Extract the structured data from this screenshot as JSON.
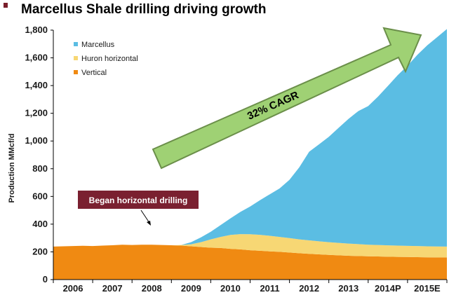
{
  "title": "Marcellus Shale drilling driving growth",
  "colors": {
    "bullet": "#7a1f2b",
    "marcellus": "#5bbde3",
    "huron": "#f7d774",
    "vertical": "#f08a12",
    "annotation_bg": "#7a2030",
    "arrow_fill": "#9fd174",
    "arrow_stroke": "#6b8f4a"
  },
  "annotations": {
    "began_horizontal": "Began horizontal drilling",
    "cagr": "32% CAGR"
  },
  "chart_data": {
    "type": "area",
    "title": "",
    "ylabel": "Production MMcf/d",
    "xlabel": "",
    "ylim": [
      0,
      1800
    ],
    "yticks": [
      "0",
      "200",
      "400",
      "600",
      "800",
      "1,000",
      "1,200",
      "1,400",
      "1,600",
      "1,800"
    ],
    "ytick_values": [
      0,
      200,
      400,
      600,
      800,
      1000,
      1200,
      1400,
      1600,
      1800
    ],
    "categories": [
      "2006",
      "2007",
      "2008",
      "2009",
      "2010",
      "2011",
      "2012",
      "2013",
      "2014P",
      "2015E"
    ],
    "x": [
      0,
      0.25,
      0.5,
      0.75,
      1,
      1.25,
      1.5,
      1.75,
      2,
      2.25,
      2.5,
      2.75,
      3,
      3.25,
      3.5,
      3.75,
      4,
      4.25,
      4.5,
      4.75,
      5,
      5.25,
      5.5,
      5.75,
      6,
      6.25,
      6.5,
      6.75,
      7,
      7.25,
      7.5,
      7.75,
      8,
      8.25,
      8.5,
      8.75,
      9,
      9.25,
      9.5,
      9.75,
      10
    ],
    "stacking": "stacked",
    "legend_position": "top-left",
    "series": [
      {
        "name": "Marcellus",
        "values": [
          0,
          0,
          0,
          0,
          0,
          0,
          0,
          0,
          0,
          0,
          0,
          0,
          0,
          0,
          15,
          35,
          55,
          85,
          120,
          160,
          200,
          250,
          300,
          350,
          420,
          520,
          640,
          700,
          760,
          830,
          900,
          960,
          1000,
          1070,
          1150,
          1230,
          1300,
          1380,
          1450,
          1510,
          1570
        ]
      },
      {
        "name": "Huron horizontal",
        "values": [
          0,
          0,
          0,
          0,
          0,
          0,
          0,
          0,
          0,
          0,
          0,
          0,
          0,
          5,
          15,
          35,
          60,
          80,
          100,
          110,
          115,
          115,
          112,
          108,
          105,
          100,
          97,
          94,
          92,
          90,
          88,
          86,
          84,
          83,
          82,
          81,
          80,
          80,
          79,
          79,
          78
        ]
      },
      {
        "name": "Vertical",
        "values": [
          238,
          240,
          242,
          244,
          242,
          245,
          248,
          252,
          250,
          252,
          252,
          250,
          248,
          245,
          240,
          235,
          230,
          228,
          222,
          218,
          212,
          208,
          204,
          200,
          195,
          190,
          186,
          182,
          178,
          175,
          172,
          170,
          168,
          167,
          165,
          164,
          163,
          162,
          161,
          160,
          160
        ]
      }
    ]
  }
}
